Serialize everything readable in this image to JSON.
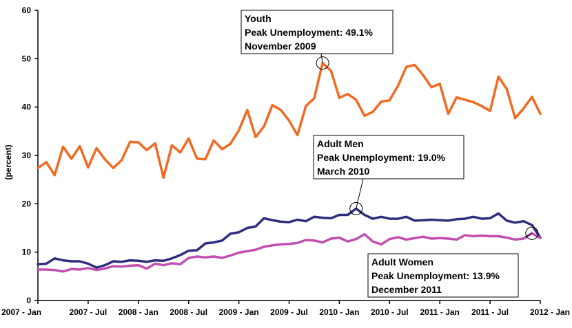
{
  "chart_data": {
    "type": "line",
    "title": "",
    "xlabel": "",
    "ylabel": "(percent)",
    "ylim": [
      0,
      60
    ],
    "yticks": [
      0,
      10,
      20,
      30,
      40,
      50,
      60
    ],
    "grid": false,
    "x_tick_labels": [
      "2007 - Jan",
      "2007 - Jul",
      "2008 - Jan",
      "2008 - Jul",
      "2009 - Jan",
      "2009 - Jul",
      "2010 - Jan",
      "2010 - Jul",
      "2011 - Jan",
      "2011 - Jul",
      "2012 - Jan"
    ],
    "x_months": 60,
    "series": [
      {
        "key": "youth",
        "color": "#f26a21",
        "values": [
          27.4,
          28.6,
          25.9,
          31.8,
          29.3,
          31.9,
          27.5,
          31.5,
          29.2,
          27.4,
          29.0,
          32.8,
          32.7,
          31.1,
          32.5,
          25.4,
          32.1,
          30.6,
          33.5,
          29.3,
          29.2,
          33.1,
          31.3,
          32.4,
          35.2,
          39.4,
          33.8,
          36.0,
          40.4,
          39.4,
          37.2,
          34.2,
          40.2,
          41.8,
          49.1,
          47.5,
          41.9,
          42.7,
          41.5,
          38.2,
          39.0,
          41.1,
          41.4,
          44.4,
          48.3,
          48.7,
          46.6,
          44.1,
          44.8,
          38.6,
          42.0,
          41.5,
          41.0,
          40.2,
          39.2,
          46.3,
          43.7,
          37.7,
          39.7,
          42.1,
          38.6
        ]
      },
      {
        "key": "adult_men",
        "color": "#2e2c7c",
        "values": [
          7.5,
          7.6,
          8.7,
          8.3,
          8.1,
          8.1,
          7.6,
          6.8,
          7.3,
          8.1,
          8.0,
          8.3,
          8.2,
          8.0,
          8.3,
          8.2,
          8.7,
          9.4,
          10.3,
          10.4,
          11.8,
          12.0,
          12.4,
          13.8,
          14.1,
          15.0,
          15.3,
          17.0,
          16.6,
          16.3,
          16.2,
          16.7,
          16.4,
          17.3,
          17.1,
          17.0,
          17.7,
          17.7,
          19.0,
          17.7,
          16.9,
          17.3,
          16.9,
          16.9,
          17.3,
          16.5,
          16.6,
          16.7,
          16.6,
          16.5,
          16.8,
          16.9,
          17.3,
          16.9,
          17.0,
          18.0,
          16.5,
          16.1,
          16.4,
          15.6,
          13.0
        ]
      },
      {
        "key": "adult_women",
        "color": "#c04fb0",
        "values": [
          6.4,
          6.4,
          6.3,
          6.0,
          6.5,
          6.4,
          6.7,
          6.3,
          6.6,
          7.1,
          7.0,
          7.2,
          7.3,
          6.6,
          7.6,
          7.3,
          7.7,
          7.5,
          8.8,
          9.1,
          8.9,
          9.1,
          8.8,
          9.3,
          9.9,
          10.2,
          10.5,
          11.1,
          11.4,
          11.6,
          11.7,
          11.9,
          12.5,
          12.4,
          12.0,
          12.8,
          13.0,
          12.2,
          12.7,
          13.7,
          12.2,
          11.6,
          12.7,
          13.1,
          12.6,
          12.9,
          13.2,
          12.8,
          12.9,
          12.8,
          12.6,
          13.5,
          13.3,
          13.4,
          13.3,
          13.3,
          13.0,
          12.6,
          12.8,
          13.9,
          12.9
        ]
      }
    ],
    "annotations": [
      {
        "key": "youth",
        "month": 34,
        "value": 49.1,
        "lines": [
          "Youth",
          "Peak Unemployment: 49.1%",
          "November 2009"
        ]
      },
      {
        "key": "adult_men",
        "month": 38,
        "value": 19.0,
        "lines": [
          "Adult Men",
          "Peak Unemployment: 19.0%",
          "March 2010"
        ]
      },
      {
        "key": "adult_women",
        "month": 59,
        "value": 13.9,
        "lines": [
          "Adult Women",
          "Peak Unemployment: 13.9%",
          "December 2011"
        ]
      }
    ]
  }
}
